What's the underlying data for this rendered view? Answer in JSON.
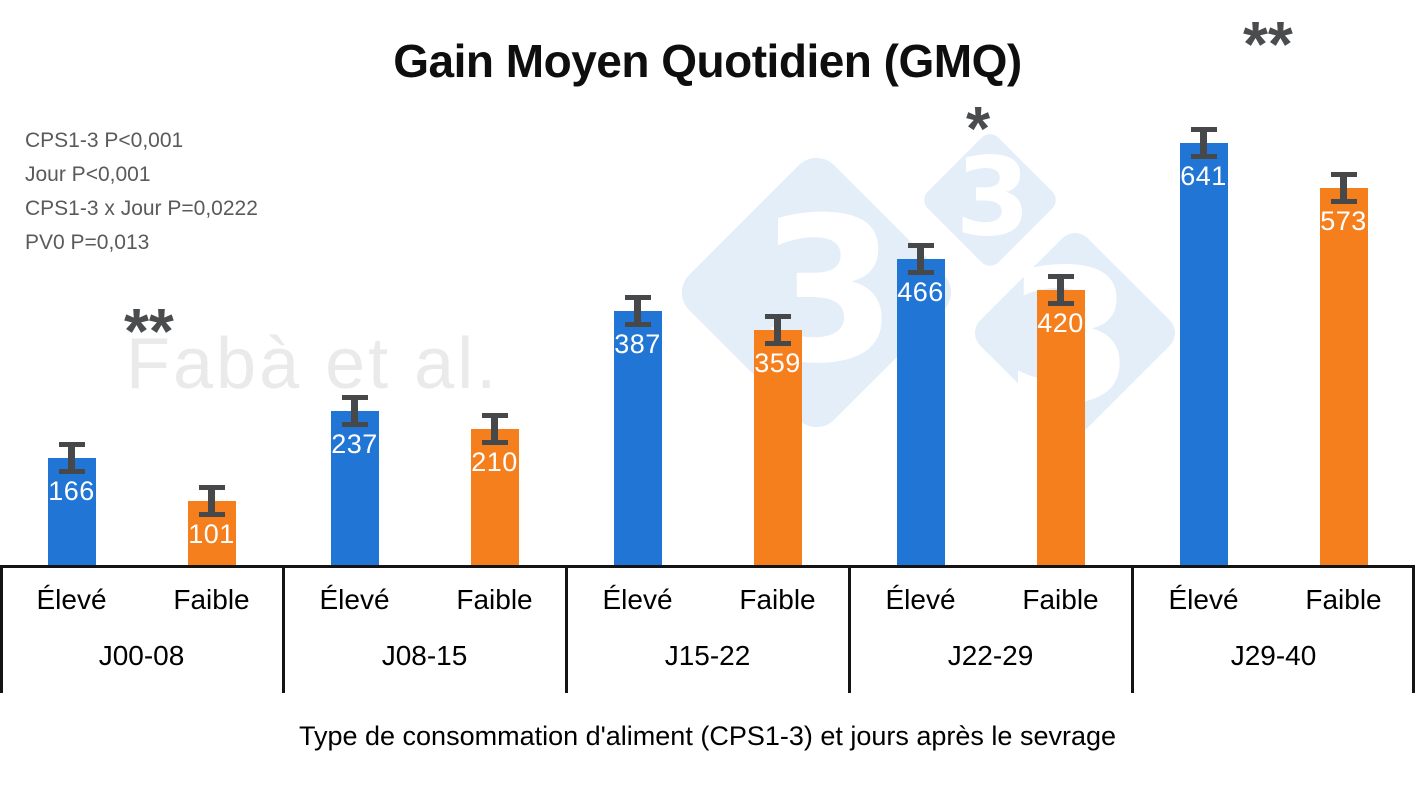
{
  "title": "Gain Moyen Quotidien (GMQ)",
  "stats_annotations": [
    "CPS1-3 P<0,001",
    "Jour P<0,001",
    "CPS1-3 x Jour P=0,0222",
    "PV0 P=0,013"
  ],
  "watermark": {
    "author": "Fabà et al.",
    "logo_digit": "3"
  },
  "chart_data": {
    "type": "bar",
    "title": "Gain Moyen Quotidien (GMQ)",
    "xlabel": "Type de consommation d'aliment (CPS1-3) et jours après le sevrage",
    "ylabel": "",
    "categories": [
      "J00-08",
      "J08-15",
      "J15-22",
      "J22-29",
      "J29-40"
    ],
    "series": [
      {
        "name": "Élevé",
        "color": "#2176d5",
        "values": [
          166,
          237,
          387,
          466,
          641
        ]
      },
      {
        "name": "Faible",
        "color": "#f57e1d",
        "values": [
          101,
          210,
          359,
          420,
          573
        ]
      }
    ],
    "value_labels": true,
    "error_bars": true,
    "y_axis_visible": false,
    "grid": false,
    "legend_position": "below-bars",
    "ylim": [
      0,
      857
    ],
    "significance_markers": [
      {
        "category": "J00-08",
        "marker": "**"
      },
      {
        "category": "J22-29",
        "marker": "*"
      },
      {
        "category": "J29-40",
        "marker": "**"
      }
    ]
  }
}
